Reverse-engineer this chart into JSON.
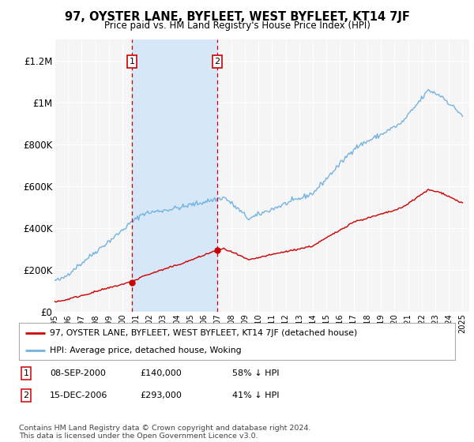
{
  "title": "97, OYSTER LANE, BYFLEET, WEST BYFLEET, KT14 7JF",
  "subtitle": "Price paid vs. HM Land Registry's House Price Index (HPI)",
  "ylim": [
    0,
    1300000
  ],
  "yticks": [
    0,
    200000,
    400000,
    600000,
    800000,
    1000000,
    1200000
  ],
  "ytick_labels": [
    "£0",
    "£200K",
    "£400K",
    "£600K",
    "£800K",
    "£1M",
    "£1.2M"
  ],
  "background_color": "#ffffff",
  "plot_bg_color": "#f5f5f5",
  "grid_color": "#ffffff",
  "sale1_year": 2000.69,
  "sale1_price": 140000,
  "sale2_year": 2006.96,
  "sale2_price": 293000,
  "shade_color": "#d6e8f7",
  "shade_alpha": 1.0,
  "hpi_color": "#74b3e0",
  "price_color": "#cc0000",
  "legend_title1": "97, OYSTER LANE, BYFLEET, WEST BYFLEET, KT14 7JF (detached house)",
  "legend_title2": "HPI: Average price, detached house, Woking",
  "footnote": "Contains HM Land Registry data © Crown copyright and database right 2024.\nThis data is licensed under the Open Government Licence v3.0.",
  "table": [
    {
      "num": "1",
      "date": "08-SEP-2000",
      "price": "£140,000",
      "hpi": "58% ↓ HPI"
    },
    {
      "num": "2",
      "date": "15-DEC-2006",
      "price": "£293,000",
      "hpi": "41% ↓ HPI"
    }
  ]
}
